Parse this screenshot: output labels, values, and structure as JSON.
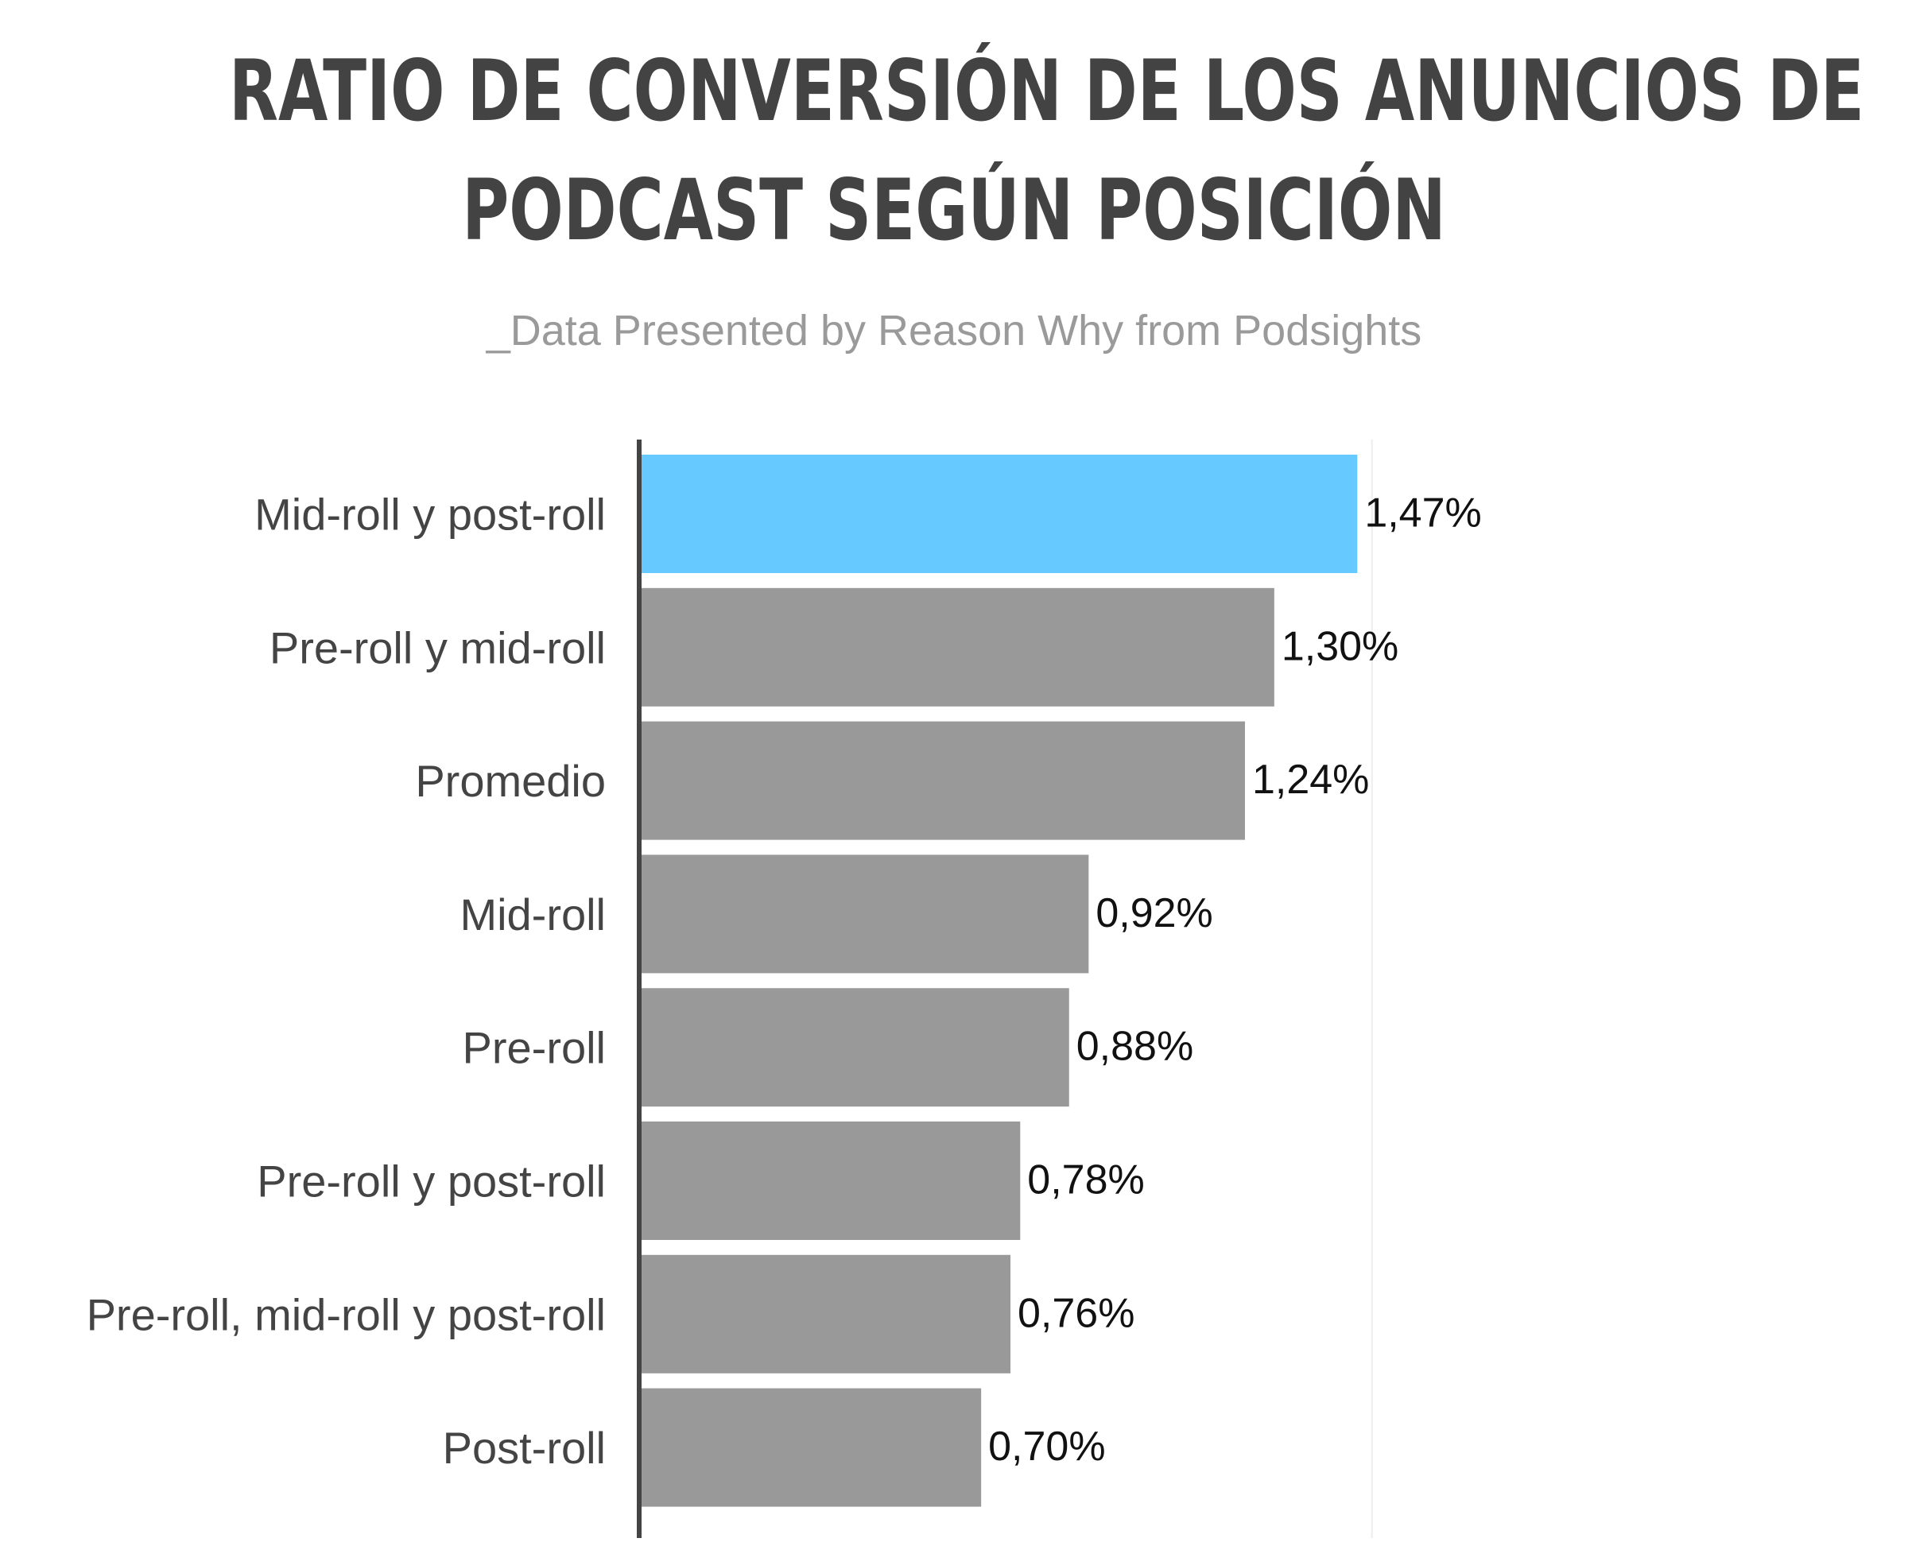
{
  "chart_data": {
    "type": "bar",
    "orientation": "horizontal",
    "title_lines": [
      "RATIO DE CONVERSIÓN DE LOS ANUNCIOS DE",
      "PODCAST SEGÚN POSICIÓN"
    ],
    "subtitle": "_Data Presented by Reason Why from Podsights",
    "categories": [
      "Mid-roll y post-roll",
      "Pre-roll y mid-roll",
      "Promedio",
      "Mid-roll",
      "Pre-roll",
      "Pre-roll y post-roll",
      "Pre-roll, mid-roll y post-roll",
      "Post-roll"
    ],
    "values": [
      1.47,
      1.3,
      1.24,
      0.92,
      0.88,
      0.78,
      0.76,
      0.7
    ],
    "value_labels": [
      "1,47%",
      "1,30%",
      "1,24%",
      "0,92%",
      "0,88%",
      "0,78%",
      "0,76%",
      "0,70%"
    ],
    "unit": "%",
    "xlim": [
      0,
      2.0
    ],
    "grid": true,
    "highlight_index": 0,
    "colors": {
      "highlight": "#66c9ff",
      "bar": "#999999",
      "axis": "#444444",
      "grid": "#eeeeee",
      "title": "#434343",
      "subtitle": "#9a9a9a",
      "label": "#444444",
      "value_label": "#111111"
    }
  }
}
